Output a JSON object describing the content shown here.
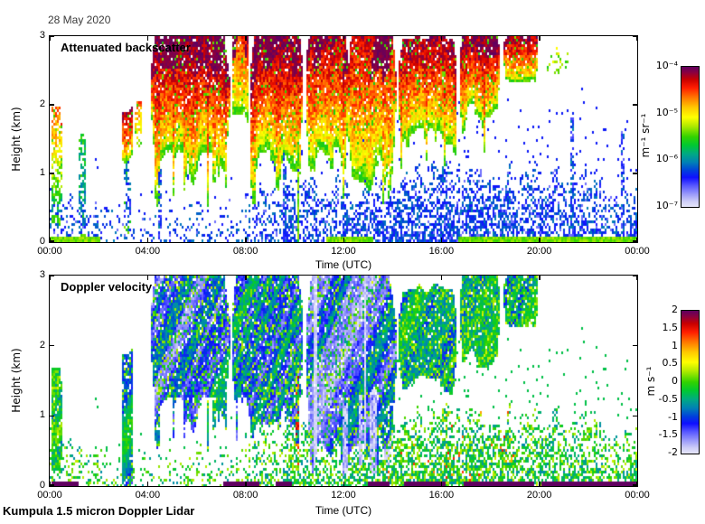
{
  "figure": {
    "date_label": "28 May 2020",
    "footer": "Kumpula 1.5 micron Doppler Lidar",
    "background": "#ffffff"
  },
  "colormap": {
    "stops": [
      {
        "t": 0.0,
        "rgb": [
          230,
          230,
          250
        ]
      },
      {
        "t": 0.04,
        "rgb": [
          205,
          205,
          247
        ]
      },
      {
        "t": 0.09,
        "rgb": [
          155,
          155,
          250
        ]
      },
      {
        "t": 0.15,
        "rgb": [
          90,
          90,
          255
        ]
      },
      {
        "t": 0.21,
        "rgb": [
          15,
          15,
          255
        ]
      },
      {
        "t": 0.26,
        "rgb": [
          0,
          64,
          220
        ]
      },
      {
        "t": 0.32,
        "rgb": [
          0,
          130,
          180
        ]
      },
      {
        "t": 0.38,
        "rgb": [
          0,
          170,
          130
        ]
      },
      {
        "t": 0.44,
        "rgb": [
          0,
          200,
          50
        ]
      },
      {
        "t": 0.5,
        "rgb": [
          50,
          210,
          0
        ]
      },
      {
        "t": 0.58,
        "rgb": [
          180,
          235,
          0
        ]
      },
      {
        "t": 0.64,
        "rgb": [
          255,
          255,
          0
        ]
      },
      {
        "t": 0.71,
        "rgb": [
          255,
          200,
          0
        ]
      },
      {
        "t": 0.78,
        "rgb": [
          255,
          120,
          0
        ]
      },
      {
        "t": 0.85,
        "rgb": [
          255,
          30,
          0
        ]
      },
      {
        "t": 0.91,
        "rgb": [
          200,
          0,
          0
        ]
      },
      {
        "t": 0.96,
        "rgb": [
          138,
          0,
          64
        ]
      },
      {
        "t": 1.0,
        "rgb": [
          96,
          0,
          96
        ]
      }
    ]
  },
  "chart_data": [
    {
      "type": "heatmap",
      "title": "Attenuated backscatter",
      "xlabel": "Time (UTC)",
      "ylabel": "Height (km)",
      "x_ticks": [
        "00:00",
        "04:00",
        "08:00",
        "12:00",
        "16:00",
        "20:00",
        "00:00"
      ],
      "x_range_hours": [
        0,
        24
      ],
      "ylim": [
        0,
        3
      ],
      "y_ticks": [
        "0",
        "1",
        "2",
        "3"
      ],
      "colorbar": {
        "label": "m⁻¹ sr⁻¹",
        "scale": "log",
        "tick_labels": [
          "10⁻⁴",
          "10⁻⁵",
          "10⁻⁶",
          "10⁻⁷"
        ],
        "range_max": "1e-4",
        "range_min": "1e-7"
      },
      "features": {
        "clouds": [
          {
            "t0": 0.05,
            "t1": 0.5,
            "base": 0.0,
            "top": 2.05,
            "vmin": 0.2,
            "vmax": 0.8,
            "dropout": 0.3
          },
          {
            "t0": 1.2,
            "t1": 1.5,
            "base": 0.0,
            "top": 1.6,
            "vmin": 0.18,
            "vmax": 0.45,
            "dropout": 0.45
          },
          {
            "t0": 2.95,
            "t1": 3.4,
            "base": 1.25,
            "top": 2.0,
            "vmin": 0.55,
            "vmax": 0.93,
            "core": 0.3
          },
          {
            "t0": 3.05,
            "t1": 3.3,
            "base": 0.0,
            "top": 1.3,
            "vmin": 0.2,
            "vmax": 0.3,
            "dropout": 0.5
          },
          {
            "t0": 3.5,
            "t1": 3.8,
            "base": 1.4,
            "top": 2.15,
            "vmin": 0.45,
            "vmax": 0.8,
            "dropout": 0.3
          },
          {
            "t0": 4.1,
            "t1": 7.35,
            "base": 1.05,
            "top": 3.0,
            "vmin": 0.5,
            "vmax": 0.98,
            "core": 0.85,
            "plume": 0.75
          },
          {
            "t0": 7.45,
            "t1": 8.15,
            "base": 1.75,
            "top": 3.0,
            "vmin": 0.48,
            "vmax": 0.86,
            "core": 0.25
          },
          {
            "t0": 8.2,
            "t1": 10.35,
            "base": 1.15,
            "top": 3.0,
            "vmin": 0.5,
            "vmax": 0.97,
            "core": 0.7,
            "plume": 0.65
          },
          {
            "t0": 10.45,
            "t1": 12.2,
            "base": 1.25,
            "top": 3.0,
            "vmin": 0.5,
            "vmax": 0.94,
            "core": 0.5,
            "plume": 0.6
          },
          {
            "t0": 12.2,
            "t1": 14.15,
            "base": 1.0,
            "top": 3.0,
            "vmin": 0.5,
            "vmax": 0.9,
            "core": 0.3,
            "plume": 0.65
          },
          {
            "t0": 14.25,
            "t1": 16.65,
            "base": 1.5,
            "top": 2.95,
            "vmin": 0.5,
            "vmax": 0.95,
            "core": 0.5,
            "plume": 0.5
          },
          {
            "t0": 16.75,
            "t1": 18.4,
            "base": 1.9,
            "top": 3.0,
            "vmin": 0.5,
            "vmax": 0.97,
            "core": 0.7,
            "plume": 0.35
          },
          {
            "t0": 18.55,
            "t1": 19.95,
            "base": 2.4,
            "top": 3.0,
            "vmin": 0.5,
            "vmax": 0.96,
            "core": 0.7
          },
          {
            "t0": 20.3,
            "t1": 21.2,
            "base": 2.45,
            "top": 2.9,
            "vmin": 0.45,
            "vmax": 0.6,
            "dropout": 0.75
          }
        ],
        "columns": [
          {
            "t0": 4.45,
            "t1": 4.6,
            "h0": 0,
            "h1": 1.05,
            "v": 0.24,
            "p": 0.6,
            "jit": 0.1
          },
          {
            "t0": 9.55,
            "t1": 9.7,
            "h0": 0,
            "h1": 1.3,
            "v": 0.24,
            "p": 0.7,
            "jit": 0.1
          },
          {
            "t0": 10.1,
            "t1": 10.2,
            "h0": 0,
            "h1": 1.6,
            "v": 0.52,
            "p": 0.9,
            "jit": 0.08
          },
          {
            "t0": 21.25,
            "t1": 21.4,
            "h0": 0,
            "h1": 1.9,
            "v": 0.24,
            "p": 0.6,
            "jit": 0.1
          },
          {
            "t0": 23.35,
            "t1": 23.5,
            "h0": 0.2,
            "h1": 1.6,
            "v": 0.22,
            "p": 0.5,
            "jit": 0.1
          }
        ],
        "bl": [
          {
            "t0": 0,
            "t1": 2,
            "depth": 0.55,
            "dens": 0.3
          },
          {
            "t0": 2,
            "t1": 5.5,
            "depth": 0.45,
            "dens": 0.14
          },
          {
            "t0": 5.5,
            "t1": 8,
            "depth": 0.5,
            "dens": 0.22
          },
          {
            "t0": 8,
            "t1": 9.5,
            "depth": 0.7,
            "dens": 0.38
          },
          {
            "t0": 9.5,
            "t1": 12,
            "depth": 0.85,
            "dens": 0.5
          },
          {
            "t0": 12,
            "t1": 14,
            "depth": 0.8,
            "dens": 0.55
          },
          {
            "t0": 14,
            "t1": 16,
            "depth": 0.9,
            "dens": 0.6
          },
          {
            "t0": 16,
            "t1": 19,
            "depth": 1.0,
            "dens": 0.62
          },
          {
            "t0": 19,
            "t1": 21,
            "depth": 0.95,
            "dens": 0.5
          },
          {
            "t0": 21,
            "t1": 24,
            "depth": 0.9,
            "dens": 0.45
          }
        ],
        "surface": [
          [
            0,
            2.1
          ],
          [
            11.3,
            13.2
          ],
          [
            16.7,
            24
          ]
        ]
      }
    },
    {
      "type": "heatmap",
      "title": "Doppler velocity",
      "xlabel": "Time (UTC)",
      "ylabel": "Height (km)",
      "x_ticks": [
        "00:00",
        "04:00",
        "08:00",
        "12:00",
        "16:00",
        "20:00",
        "00:00"
      ],
      "x_range_hours": [
        0,
        24
      ],
      "ylim": [
        0,
        3
      ],
      "y_ticks": [
        "0",
        "1",
        "2",
        "3"
      ],
      "colorbar": {
        "label": "m s⁻¹",
        "scale": "linear",
        "tick_labels": [
          "2",
          "1.5",
          "1",
          "0.5",
          "0",
          "-0.5",
          "-1",
          "-1.5",
          "-2"
        ],
        "range_max": "2",
        "range_min": "-2"
      },
      "features": {
        "clouds": [
          {
            "t0": 0.05,
            "t1": 0.5,
            "base": 0.0,
            "top": 1.75,
            "v": -0.25,
            "spread": 0.8,
            "green": 0.45
          },
          {
            "t0": 2.95,
            "t1": 3.4,
            "base": 0.0,
            "top": 2.0,
            "v": -0.7,
            "spread": 0.6,
            "green": 0.25
          },
          {
            "t0": 4.1,
            "t1": 7.35,
            "base": 1.0,
            "top": 3.0,
            "v": -1.05,
            "spread": 0.7,
            "green": 0.3,
            "plume": 0.7
          },
          {
            "t0": 7.45,
            "t1": 10.35,
            "base": 1.1,
            "top": 3.0,
            "v": -1.0,
            "spread": 0.7,
            "green": 0.3,
            "plume": 0.6
          },
          {
            "t0": 10.45,
            "t1": 14.15,
            "base": 0.5,
            "top": 3.0,
            "v": -1.2,
            "spread": 0.7,
            "green": 0.25,
            "lav": 0.55,
            "plume": 0.8
          },
          {
            "t0": 14.25,
            "t1": 16.65,
            "base": 1.4,
            "top": 2.9,
            "v": -0.55,
            "spread": 0.6,
            "green": 0.5
          },
          {
            "t0": 16.75,
            "t1": 18.4,
            "base": 1.8,
            "top": 3.0,
            "v": -0.45,
            "spread": 0.6,
            "green": 0.55
          },
          {
            "t0": 18.55,
            "t1": 19.95,
            "base": 2.35,
            "top": 3.0,
            "v": -0.45,
            "spread": 0.6,
            "green": 0.55
          }
        ],
        "columns": [
          {
            "t0": 10.05,
            "t1": 10.2,
            "h0": 0.2,
            "h1": 1.7,
            "v": 0.7,
            "p": 0.6,
            "jit": 1.2
          },
          {
            "t0": 12.0,
            "t1": 12.2,
            "h0": 0.2,
            "h1": 1.2,
            "v": -1.8,
            "p": 0.8,
            "jit": 0.3
          },
          {
            "t0": 12.6,
            "t1": 12.8,
            "h0": 0.3,
            "h1": 1.3,
            "v": -1.8,
            "p": 0.8,
            "jit": 0.3
          },
          {
            "t0": 13.1,
            "t1": 13.35,
            "h0": 0.2,
            "h1": 1.4,
            "v": -1.8,
            "p": 0.8,
            "jit": 0.3
          }
        ],
        "bl": [
          {
            "t0": 0,
            "t1": 2,
            "depth": 0.55,
            "dens": 0.3
          },
          {
            "t0": 2,
            "t1": 5.5,
            "depth": 0.45,
            "dens": 0.14
          },
          {
            "t0": 5.5,
            "t1": 8,
            "depth": 0.5,
            "dens": 0.25
          },
          {
            "t0": 8,
            "t1": 9.5,
            "depth": 0.7,
            "dens": 0.4
          },
          {
            "t0": 9.5,
            "t1": 12,
            "depth": 0.85,
            "dens": 0.55
          },
          {
            "t0": 12,
            "t1": 14,
            "depth": 0.8,
            "dens": 0.6
          },
          {
            "t0": 14,
            "t1": 16,
            "depth": 0.9,
            "dens": 0.65
          },
          {
            "t0": 16,
            "t1": 19,
            "depth": 1.0,
            "dens": 0.68
          },
          {
            "t0": 19,
            "t1": 21,
            "depth": 0.95,
            "dens": 0.55
          },
          {
            "t0": 21,
            "t1": 24,
            "depth": 0.9,
            "dens": 0.5
          }
        ],
        "flecks": [
          [
            13,
            19
          ]
        ],
        "surface": [
          [
            0.05,
            1.2
          ],
          [
            7.1,
            8.6
          ],
          [
            9.2,
            9.9
          ],
          [
            13.0,
            13.9
          ],
          [
            14.5,
            16.2
          ],
          [
            16.9,
            19.8
          ],
          [
            20.1,
            24
          ]
        ]
      }
    }
  ]
}
